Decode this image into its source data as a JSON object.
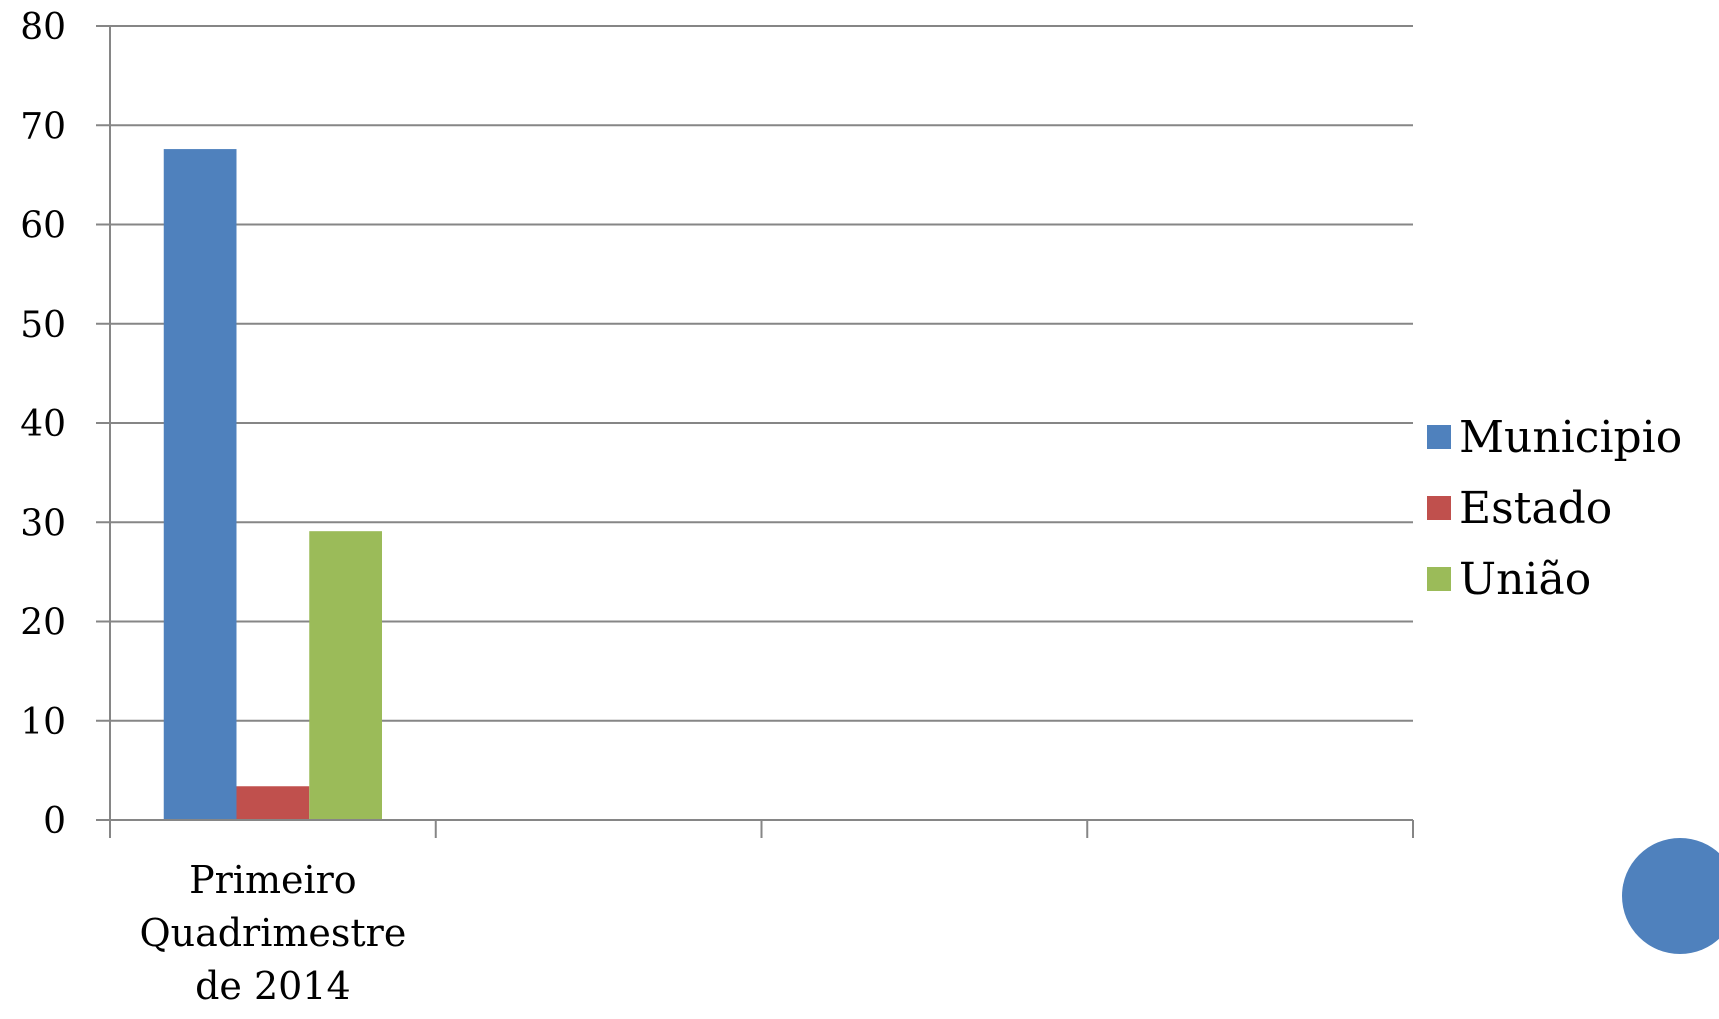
{
  "chart_data": {
    "type": "bar",
    "categories": [
      "Primeiro Quadrimestre de 2014",
      "",
      "",
      ""
    ],
    "category_lines": [
      [
        "Primeiro",
        "Quadrimestre",
        "de 2014"
      ],
      [],
      [],
      []
    ],
    "series": [
      {
        "name": "Municipio",
        "color": "#4F81BD",
        "values": [
          67.6,
          null,
          null,
          null
        ]
      },
      {
        "name": "Estado",
        "color": "#C0504D",
        "values": [
          3.4,
          null,
          null,
          null
        ]
      },
      {
        "name": "União",
        "color": "#9BBB59",
        "values": [
          29.1,
          null,
          null,
          null
        ]
      }
    ],
    "ylim": [
      0,
      80
    ],
    "yticks": [
      0,
      10,
      20,
      30,
      40,
      50,
      60,
      70,
      80
    ],
    "grid": true,
    "legend_position": "right",
    "title": "",
    "xlabel": "",
    "ylabel": ""
  },
  "decoration": {
    "circle_color": "#4F81BD",
    "gridline_color": "#868686"
  }
}
